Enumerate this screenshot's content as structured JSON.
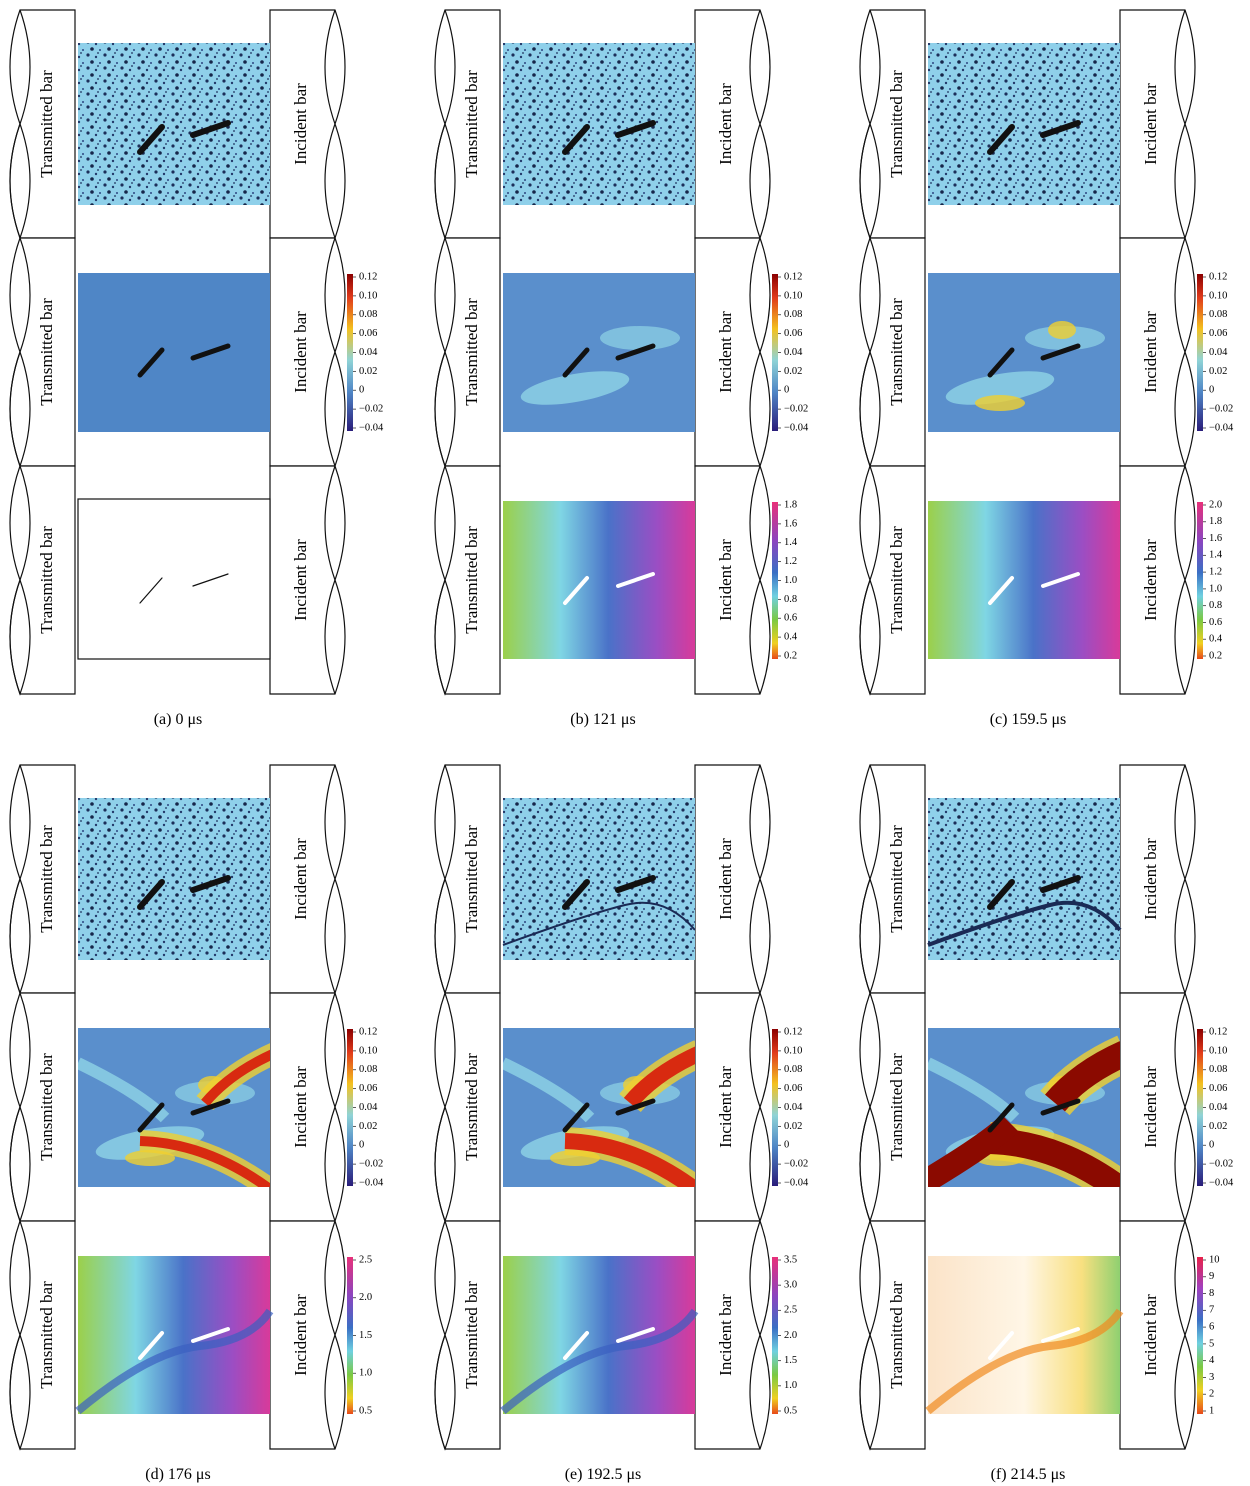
{
  "bar_labels": {
    "left": "Transmitted bar",
    "right": "Incident bar"
  },
  "strain_ticks": [
    "0.12",
    "0.10",
    "0.08",
    "0.06",
    "0.04",
    "0.02",
    "0",
    "−0.02",
    "−0.04"
  ],
  "panels": [
    {
      "caption": "(a) 0 μs"
    },
    {
      "caption": "(b) 121 μs",
      "displacement_ticks": [
        "1.8",
        "1.6",
        "1.4",
        "1.2",
        "1.0",
        "0.8",
        "0.6",
        "0.4",
        "0.2"
      ]
    },
    {
      "caption": "(c) 159.5 μs",
      "displacement_ticks": [
        "2.0",
        "1.8",
        "1.6",
        "1.4",
        "1.2",
        "1.0",
        "0.8",
        "0.6",
        "0.4",
        "0.2"
      ]
    },
    {
      "caption": "(d) 176 μs",
      "displacement_ticks": [
        "2.5",
        "2.0",
        "1.5",
        "1.0",
        "0.5"
      ]
    },
    {
      "caption": "(e) 192.5 μs",
      "displacement_ticks": [
        "3.5",
        "3.0",
        "2.5",
        "2.0",
        "1.5",
        "1.0",
        "0.5"
      ]
    },
    {
      "caption": "(f) 214.5 μs",
      "displacement_ticks": [
        "10",
        "9",
        "8",
        "7",
        "6",
        "5",
        "4",
        "3",
        "2",
        "1"
      ]
    }
  ]
}
